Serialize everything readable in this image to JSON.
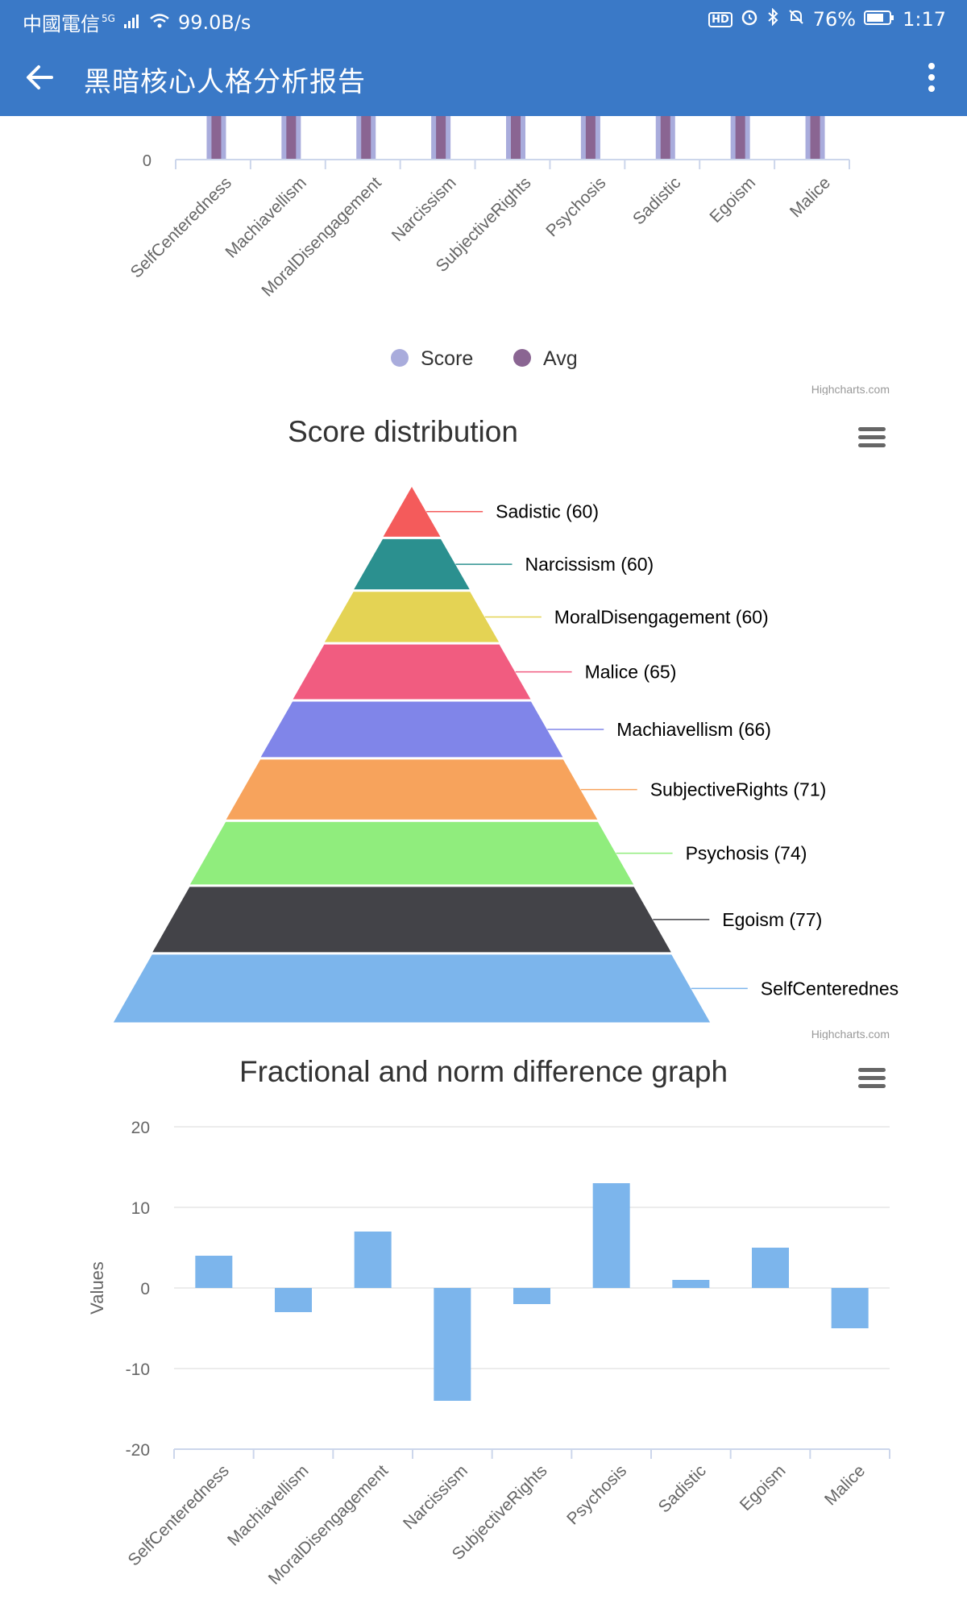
{
  "status_bar": {
    "carrier": "中國電信",
    "network": "5G",
    "speed": "99.0B/s",
    "hd": "HD",
    "battery": "76%",
    "time": "1:17",
    "icons": [
      "signal-icon",
      "wifi-icon",
      "alarm-icon",
      "bluetooth-icon",
      "mute-icon",
      "battery-icon"
    ]
  },
  "app_bar": {
    "title": "黑暗核心人格分析报告",
    "back_icon": "arrow-left-icon",
    "menu_icon": "more-vertical-icon"
  },
  "colors": {
    "app_bar": "#3a79c7",
    "score": "#a9acdc",
    "avg": "#8a6592",
    "bar": "#7cb5ec"
  },
  "chart_data": [
    {
      "type": "bar",
      "title": "",
      "categories": [
        "SelfCenteredness",
        "Machiavellism",
        "MoralDisengagement",
        "Narcissism",
        "SubjectiveRights",
        "Psychosis",
        "Sadistic",
        "Egoism",
        "Malice"
      ],
      "series": [
        {
          "name": "Score",
          "color": "#a9acdc"
        },
        {
          "name": "Avg",
          "color": "#8a6592"
        }
      ],
      "y_ticks_visible": [
        "0"
      ],
      "legend": "bottom-center",
      "credit": "Highcharts.com"
    },
    {
      "type": "pyramid",
      "title": "Score distribution",
      "labels": [
        "Sadistic (60)",
        "Narcissism (60)",
        "MoralDisengagement (60)",
        "Malice (65)",
        "Machiavellism (66)",
        "SubjectiveRights (71)",
        "Psychosis (74)",
        "Egoism (77)",
        "SelfCenterednes"
      ],
      "values": [
        60,
        60,
        60,
        65,
        66,
        71,
        74,
        77,
        80
      ],
      "colors": [
        "#f45b5b",
        "#2b908f",
        "#e4d354",
        "#f15c80",
        "#8085e9",
        "#f7a35c",
        "#90ed7d",
        "#434348",
        "#7cb5ec"
      ],
      "credit": "Highcharts.com"
    },
    {
      "type": "bar",
      "title": "Fractional and norm difference graph",
      "ylabel": "Values",
      "ylim": [
        -20,
        20
      ],
      "yticks": [
        "20",
        "10",
        "0",
        "-10",
        "-20"
      ],
      "categories": [
        "SelfCenteredness",
        "Machiavellism",
        "MoralDisengagement",
        "Narcissism",
        "SubjectiveRights",
        "Psychosis",
        "Sadistic",
        "Egoism",
        "Malice"
      ],
      "values": [
        4,
        -3,
        7,
        -14,
        -2,
        13,
        1,
        5,
        -5
      ],
      "grid": true
    }
  ]
}
